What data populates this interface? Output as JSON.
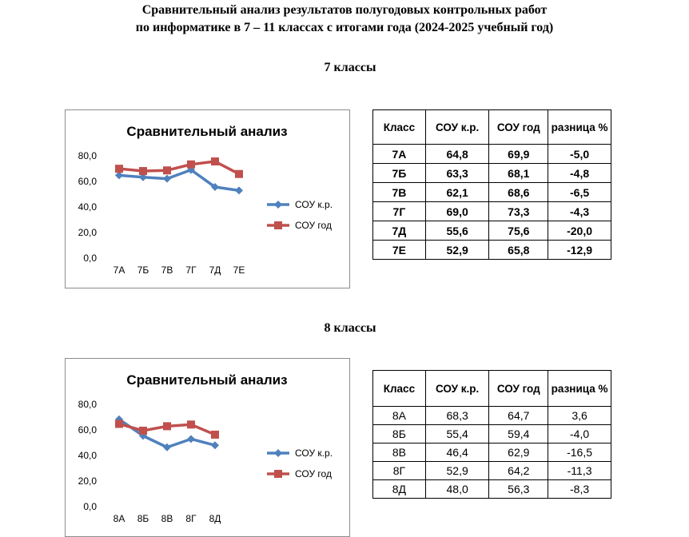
{
  "title_line1": "Сравнительный анализ результатов полугодовых контрольных работ",
  "title_line2": "по информатике в 7 – 11 классах с итогами года   (2024-2025 учебный год)",
  "sections": [
    {
      "heading": "7 классы",
      "table": {
        "headers": [
          "Класс",
          "СОУ к.р.",
          "СОУ год",
          "разница %"
        ],
        "rows": [
          [
            "7А",
            "64,8",
            "69,9",
            "-5,0"
          ],
          [
            "7Б",
            "63,3",
            "68,1",
            "-4,8"
          ],
          [
            "7В",
            "62,1",
            "68,6",
            "-6,5"
          ],
          [
            "7Г",
            "69,0",
            "73,3",
            "-4,3"
          ],
          [
            "7Д",
            "55,6",
            "75,6",
            "-20,0"
          ],
          [
            "7Е",
            "52,9",
            "65,8",
            "-12,9"
          ]
        ]
      }
    },
    {
      "heading": "8 классы",
      "table": {
        "headers": [
          "Класс",
          "СОУ к.р.",
          "СОУ год",
          "разница %"
        ],
        "rows": [
          [
            "8А",
            "68,3",
            "64,7",
            "3,6"
          ],
          [
            "8Б",
            "55,4",
            "59,4",
            "-4,0"
          ],
          [
            "8В",
            "46,4",
            "62,9",
            "-16,5"
          ],
          [
            "8Г",
            "52,9",
            "64,2",
            "-11,3"
          ],
          [
            "8Д",
            "48,0",
            "56,3",
            "-8,3"
          ]
        ]
      }
    }
  ],
  "chart_data": [
    {
      "type": "line",
      "title": "Сравнительный анализ",
      "categories": [
        "7А",
        "7Б",
        "7В",
        "7Г",
        "7Д",
        "7Е"
      ],
      "yticks": [
        "0,0",
        "20,0",
        "40,0",
        "60,0",
        "80,0"
      ],
      "ylim": [
        0,
        80
      ],
      "grid": false,
      "legend_position": "right",
      "series": [
        {
          "name": "СОУ к.р.",
          "color": "#4f81bd",
          "marker": "diamond",
          "values": [
            64.8,
            63.3,
            62.1,
            69.0,
            55.6,
            52.9
          ]
        },
        {
          "name": "СОУ год",
          "color": "#c0504d",
          "marker": "square",
          "values": [
            69.9,
            68.1,
            68.6,
            73.3,
            75.6,
            65.8
          ]
        }
      ]
    },
    {
      "type": "line",
      "title": "Сравнительный анализ",
      "categories": [
        "8А",
        "8Б",
        "8В",
        "8Г",
        "8Д"
      ],
      "yticks": [
        "0,0",
        "20,0",
        "40,0",
        "60,0",
        "80,0"
      ],
      "ylim": [
        0,
        80
      ],
      "grid": false,
      "legend_position": "right",
      "series": [
        {
          "name": "СОУ к.р.",
          "color": "#4f81bd",
          "marker": "diamond",
          "values": [
            68.3,
            55.4,
            46.4,
            52.9,
            48.0
          ]
        },
        {
          "name": "СОУ год",
          "color": "#c0504d",
          "marker": "square",
          "values": [
            64.7,
            59.4,
            62.9,
            64.2,
            56.3
          ]
        }
      ]
    }
  ]
}
